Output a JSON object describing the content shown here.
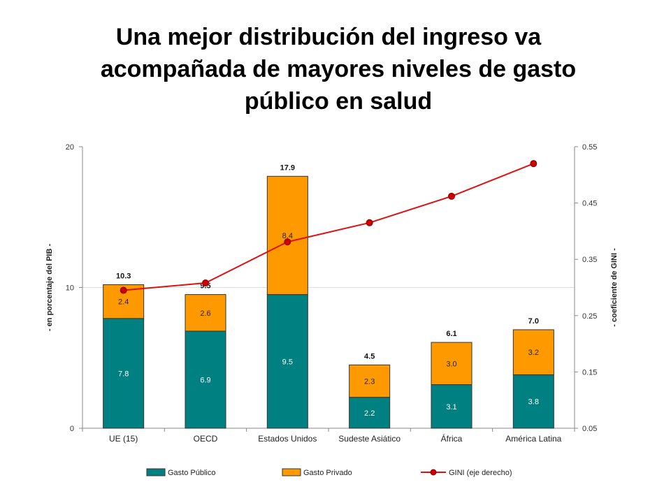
{
  "title": {
    "line1": "Una mejor distribución del ingreso va",
    "line2": "acompañada de mayores niveles de gasto",
    "line3": "público en salud"
  },
  "colors": {
    "public": "#008080",
    "private": "#FF9900",
    "gini": "#E01010",
    "gini_marker": "#CC0000",
    "axis": "#888888",
    "grid": "#DDDDDD"
  },
  "chart_data": {
    "type": "bar",
    "stacked": true,
    "categories": [
      "UE (15)",
      "OECD",
      "Estados Unidos",
      "Sudeste Asiático",
      "África",
      "América Latina"
    ],
    "series": [
      {
        "name": "Gasto Público",
        "values": [
          7.8,
          6.9,
          9.5,
          2.2,
          3.1,
          3.8
        ],
        "labels": [
          "7.8",
          "6.9",
          "9.5",
          "2.2",
          "3.1",
          "3.8"
        ]
      },
      {
        "name": "Gasto Privado",
        "values": [
          2.4,
          2.6,
          8.4,
          2.3,
          3.0,
          3.2
        ],
        "labels": [
          "2.4",
          "2.6",
          "8.4",
          "2.3",
          "3.0",
          "3.2"
        ]
      }
    ],
    "totals": [
      10.3,
      9.5,
      17.9,
      4.5,
      6.1,
      7.0
    ],
    "total_labels": [
      "10.3",
      "9.5",
      "17.9",
      "4.5",
      "6.1",
      "7.0"
    ],
    "line_series": {
      "name": "GINI (eje derecho)",
      "axis": "right",
      "values": [
        0.295,
        0.308,
        0.381,
        0.415,
        0.462,
        0.52
      ]
    },
    "ylabel": "- en porcentaje del PIB -",
    "ylabel_right": "- coeficiente de GINI -",
    "ylim": [
      0,
      20
    ],
    "ylim_right": [
      0.05,
      0.55
    ],
    "yticks": [
      "0",
      "10",
      "20"
    ],
    "yticks_right": [
      "0.05",
      "0.15",
      "0.25",
      "0.35",
      "0.45",
      "0.55"
    ],
    "grid": "horizontal at 10",
    "legend_position": "bottom"
  }
}
